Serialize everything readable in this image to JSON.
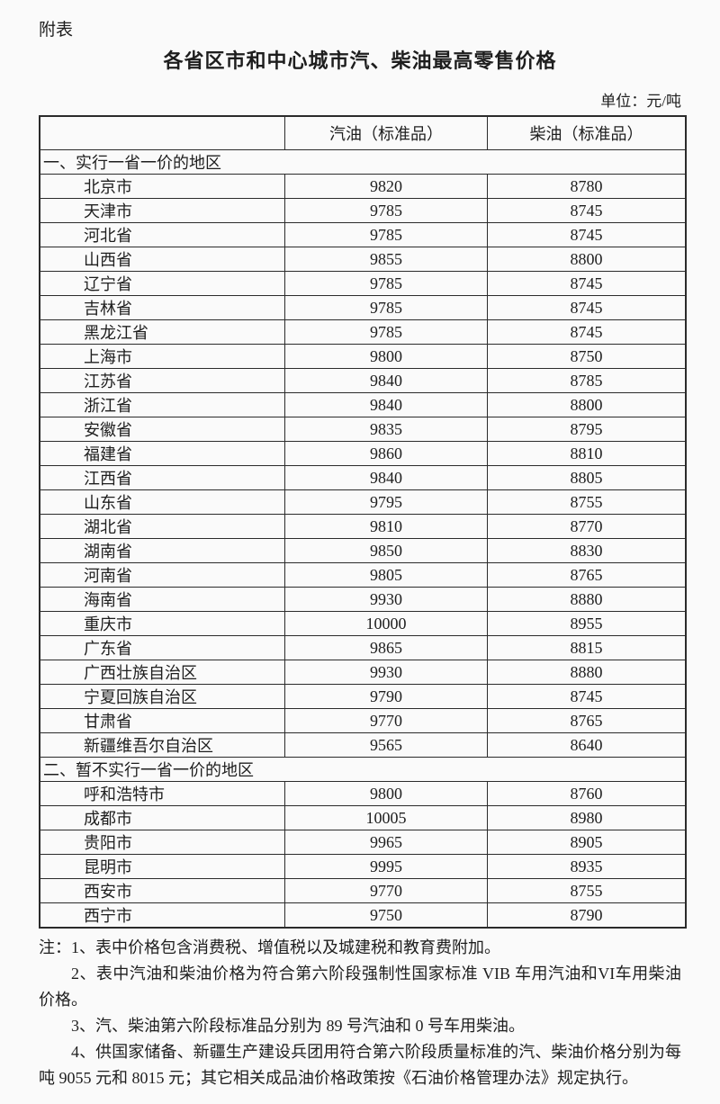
{
  "page": {
    "attachment_label": "附表",
    "title": "各省区市和中心城市汽、柴油最高零售价格",
    "unit_label": "单位：元/吨"
  },
  "table": {
    "columns": [
      "",
      "汽油（标准品）",
      "柴油（标准品）"
    ],
    "sections": [
      {
        "label": "一、实行一省一价的地区",
        "rows": [
          {
            "region": "北京市",
            "gasoline": "9820",
            "diesel": "8780"
          },
          {
            "region": "天津市",
            "gasoline": "9785",
            "diesel": "8745"
          },
          {
            "region": "河北省",
            "gasoline": "9785",
            "diesel": "8745"
          },
          {
            "region": "山西省",
            "gasoline": "9855",
            "diesel": "8800"
          },
          {
            "region": "辽宁省",
            "gasoline": "9785",
            "diesel": "8745"
          },
          {
            "region": "吉林省",
            "gasoline": "9785",
            "diesel": "8745"
          },
          {
            "region": "黑龙江省",
            "gasoline": "9785",
            "diesel": "8745"
          },
          {
            "region": "上海市",
            "gasoline": "9800",
            "diesel": "8750"
          },
          {
            "region": "江苏省",
            "gasoline": "9840",
            "diesel": "8785"
          },
          {
            "region": "浙江省",
            "gasoline": "9840",
            "diesel": "8800"
          },
          {
            "region": "安徽省",
            "gasoline": "9835",
            "diesel": "8795"
          },
          {
            "region": "福建省",
            "gasoline": "9860",
            "diesel": "8810"
          },
          {
            "region": "江西省",
            "gasoline": "9840",
            "diesel": "8805"
          },
          {
            "region": "山东省",
            "gasoline": "9795",
            "diesel": "8755"
          },
          {
            "region": "湖北省",
            "gasoline": "9810",
            "diesel": "8770"
          },
          {
            "region": "湖南省",
            "gasoline": "9850",
            "diesel": "8830"
          },
          {
            "region": "河南省",
            "gasoline": "9805",
            "diesel": "8765"
          },
          {
            "region": "海南省",
            "gasoline": "9930",
            "diesel": "8880"
          },
          {
            "region": "重庆市",
            "gasoline": "10000",
            "diesel": "8955"
          },
          {
            "region": "广东省",
            "gasoline": "9865",
            "diesel": "8815"
          },
          {
            "region": "广西壮族自治区",
            "gasoline": "9930",
            "diesel": "8880"
          },
          {
            "region": "宁夏回族自治区",
            "gasoline": "9790",
            "diesel": "8745"
          },
          {
            "region": "甘肃省",
            "gasoline": "9770",
            "diesel": "8765"
          },
          {
            "region": "新疆维吾尔自治区",
            "gasoline": "9565",
            "diesel": "8640"
          }
        ]
      },
      {
        "label": "二、暂不实行一省一价的地区",
        "rows": [
          {
            "region": "呼和浩特市",
            "gasoline": "9800",
            "diesel": "8760"
          },
          {
            "region": "成都市",
            "gasoline": "10005",
            "diesel": "8980"
          },
          {
            "region": "贵阳市",
            "gasoline": "9965",
            "diesel": "8905"
          },
          {
            "region": "昆明市",
            "gasoline": "9995",
            "diesel": "8935"
          },
          {
            "region": "西安市",
            "gasoline": "9770",
            "diesel": "8755"
          },
          {
            "region": "西宁市",
            "gasoline": "9750",
            "diesel": "8790"
          }
        ]
      }
    ]
  },
  "notes": [
    "注：1、表中价格包含消费税、增值税以及城建税和教育费附加。",
    "2、表中汽油和柴油价格为符合第六阶段强制性国家标准 VIB 车用汽油和VI车用柴油价格。",
    "3、汽、柴油第六阶段标准品分别为 89 号汽油和 0 号车用柴油。",
    "4、供国家储备、新疆生产建设兵团用符合第六阶段质量标准的汽、柴油价格分别为每吨 9055 元和 8015 元；其它相关成品油价格政策按《石油价格管理办法》规定执行。"
  ]
}
